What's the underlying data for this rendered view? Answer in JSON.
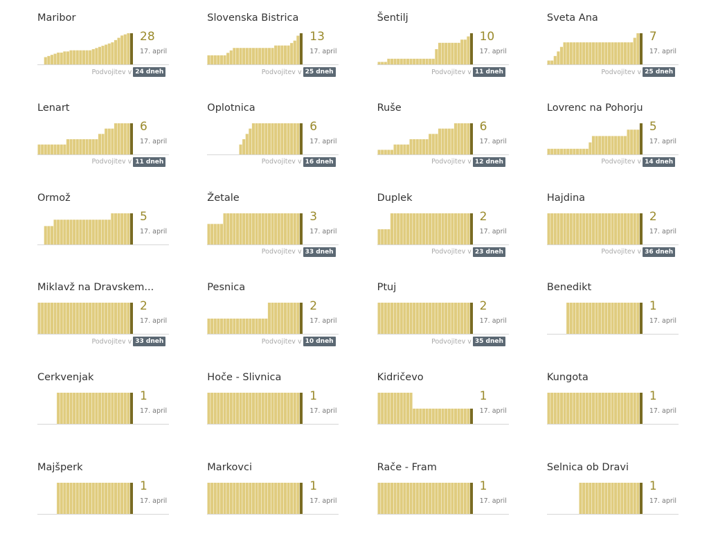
{
  "chart_data": [
    {
      "type": "bar",
      "title": "Maribor",
      "value": "28",
      "date": "17. april",
      "doubling_label": "Podvojitev v",
      "doubling": "24 dneh",
      "values": [
        7,
        8,
        9,
        10,
        11,
        11,
        12,
        12,
        13,
        13,
        13,
        13,
        13,
        13,
        13,
        14,
        15,
        16,
        17,
        18,
        19,
        20,
        22,
        24,
        26,
        27,
        28,
        28
      ]
    },
    {
      "type": "bar",
      "title": "Slovenska Bistrica",
      "value": "13",
      "date": "17. april",
      "doubling_label": "Podvojitev v",
      "doubling": "25 dneh",
      "values": [
        4,
        4,
        4,
        4,
        4,
        4,
        5,
        6,
        7,
        7,
        7,
        7,
        7,
        7,
        7,
        7,
        7,
        7,
        7,
        7,
        7,
        8,
        8,
        8,
        8,
        8,
        9,
        10,
        12,
        13
      ]
    },
    {
      "type": "bar",
      "title": "Šentilj",
      "value": "10",
      "date": "17. april",
      "doubling_label": "Podvojitev v",
      "doubling": "11 dneh",
      "values": [
        1,
        1,
        1,
        1,
        1,
        1,
        1,
        2,
        2,
        2,
        2,
        2,
        2,
        2,
        2,
        2,
        2,
        2,
        2,
        2,
        2,
        2,
        5,
        7,
        7,
        7,
        7,
        7,
        7,
        7,
        8,
        8,
        9,
        10
      ]
    },
    {
      "type": "bar",
      "title": "Sveta Ana",
      "value": "7",
      "date": "17. april",
      "doubling_label": "Podvojitev v",
      "doubling": "25 dneh",
      "values": [
        1,
        1,
        2,
        3,
        4,
        5,
        5,
        5,
        5,
        5,
        5,
        5,
        5,
        5,
        5,
        5,
        5,
        5,
        5,
        5,
        5,
        5,
        5,
        5,
        5,
        5,
        5,
        6,
        7,
        7
      ]
    },
    {
      "type": "bar",
      "title": "Lenart",
      "value": "6",
      "date": "17. april",
      "doubling_label": "Podvojitev v",
      "doubling": "11 dneh",
      "values": [
        2,
        2,
        2,
        2,
        2,
        2,
        2,
        2,
        2,
        2,
        2,
        3,
        3,
        3,
        3,
        3,
        3,
        3,
        3,
        3,
        3,
        4,
        4,
        5,
        5,
        5,
        6,
        6,
        6,
        6,
        6,
        6
      ]
    },
    {
      "type": "bar",
      "title": "Oplotnica",
      "value": "6",
      "date": "17. april",
      "doubling_label": "Podvojitev v",
      "doubling": "16 dneh",
      "values": [
        2,
        3,
        4,
        5,
        6,
        6,
        6,
        6,
        6,
        6,
        6,
        6,
        6,
        6,
        6,
        6,
        6,
        6,
        6,
        6
      ]
    },
    {
      "type": "bar",
      "title": "Ruše",
      "value": "6",
      "date": "17. april",
      "doubling_label": "Podvojitev v",
      "doubling": "12 dneh",
      "values": [
        1,
        1,
        1,
        1,
        1,
        1,
        1,
        1,
        1,
        1,
        2,
        2,
        2,
        2,
        2,
        3,
        3,
        3,
        3,
        3,
        3,
        4,
        4,
        4,
        5,
        5,
        5,
        5,
        5,
        6,
        6,
        6,
        6,
        6,
        6
      ]
    },
    {
      "type": "bar",
      "title": "Lovrenc na Pohorju",
      "value": "5",
      "date": "17. april",
      "doubling_label": "Podvojitev v",
      "doubling": "14 dneh",
      "values": [
        1,
        1,
        1,
        1,
        1,
        1,
        1,
        1,
        1,
        1,
        1,
        1,
        1,
        1,
        1,
        1,
        1,
        1,
        2,
        3,
        3,
        3,
        3,
        3,
        3,
        3,
        3,
        3,
        3,
        3,
        4,
        4,
        4,
        4,
        5
      ]
    },
    {
      "type": "bar",
      "title": "Ormož",
      "value": "5",
      "date": "17. april",
      "doubling_label": "",
      "doubling": "",
      "values": [
        3,
        3,
        3,
        4,
        4,
        4,
        4,
        4,
        4,
        4,
        4,
        4,
        4,
        4,
        4,
        4,
        4,
        4,
        4,
        4,
        4,
        5,
        5,
        5,
        5,
        5,
        5,
        5
      ]
    },
    {
      "type": "bar",
      "title": "Žetale",
      "value": "3",
      "date": "17. april",
      "doubling_label": "Podvojitev v",
      "doubling": "33 dneh",
      "values": [
        2,
        2,
        2,
        2,
        2,
        2,
        2,
        2,
        2,
        3,
        3,
        3,
        3,
        3,
        3,
        3,
        3,
        3,
        3,
        3,
        3,
        3,
        3,
        3,
        3,
        3,
        3,
        3,
        3,
        3,
        3,
        3,
        3,
        3
      ]
    },
    {
      "type": "bar",
      "title": "Duplek",
      "value": "2",
      "date": "17. april",
      "doubling_label": "Podvojitev v",
      "doubling": "23 dneh",
      "values": [
        1,
        1,
        1,
        1,
        1,
        1,
        1,
        1,
        2,
        2,
        2,
        2,
        2,
        2,
        2,
        2,
        2,
        2,
        2,
        2,
        2,
        2,
        2,
        2,
        2,
        2,
        2,
        2,
        2,
        2,
        2,
        2,
        2,
        2
      ]
    },
    {
      "type": "bar",
      "title": "Hajdina",
      "value": "2",
      "date": "17. april",
      "doubling_label": "Podvojitev v",
      "doubling": "36 dneh",
      "values": [
        2,
        2,
        2,
        2,
        2,
        2,
        2,
        2,
        2,
        2,
        2,
        2,
        2,
        2,
        2,
        2,
        2,
        2,
        2,
        2,
        2,
        2,
        2,
        2,
        2,
        2,
        2,
        2,
        2,
        2,
        2,
        2,
        2,
        2,
        2,
        2
      ]
    },
    {
      "type": "bar",
      "title": "Miklavž na Dravskem...",
      "value": "2",
      "date": "17. april",
      "doubling_label": "Podvojitev v",
      "doubling": "33 dneh",
      "values": [
        2,
        2,
        2,
        2,
        2,
        2,
        2,
        2,
        2,
        2,
        2,
        2,
        2,
        2,
        2,
        2,
        2,
        2,
        2,
        2,
        2,
        2,
        2,
        2,
        2,
        2,
        2,
        2,
        2,
        2,
        2,
        2,
        2,
        2,
        2
      ]
    },
    {
      "type": "bar",
      "title": "Pesnica",
      "value": "2",
      "date": "17. april",
      "doubling_label": "Podvojitev v",
      "doubling": "10 dneh",
      "values": [
        1,
        1,
        1,
        1,
        1,
        1,
        1,
        1,
        1,
        1,
        1,
        1,
        1,
        1,
        1,
        1,
        1,
        1,
        1,
        1,
        1,
        1,
        1,
        1,
        2,
        2,
        2,
        2,
        2,
        2,
        2,
        2,
        2,
        2,
        2
      ]
    },
    {
      "type": "bar",
      "title": "Ptuj",
      "value": "2",
      "date": "17. april",
      "doubling_label": "Podvojitev v",
      "doubling": "35 dneh",
      "values": [
        2,
        2,
        2,
        2,
        2,
        2,
        2,
        2,
        2,
        2,
        2,
        2,
        2,
        2,
        2,
        2,
        2,
        2,
        2,
        2,
        2,
        2,
        2,
        2,
        2,
        2,
        2,
        2,
        2,
        2,
        2,
        2,
        2,
        2,
        2
      ]
    },
    {
      "type": "bar",
      "title": "Benedikt",
      "value": "1",
      "date": "17. april",
      "doubling_label": "",
      "doubling": "",
      "values": [
        1,
        1,
        1,
        1,
        1,
        1,
        1,
        1,
        1,
        1,
        1,
        1,
        1,
        1,
        1,
        1,
        1,
        1,
        1,
        1,
        1,
        1,
        1,
        1
      ]
    },
    {
      "type": "bar",
      "title": "Cerkvenjak",
      "value": "1",
      "date": "17. april",
      "doubling_label": "",
      "doubling": "",
      "values": [
        1,
        1,
        1,
        1,
        1,
        1,
        1,
        1,
        1,
        1,
        1,
        1,
        1,
        1,
        1,
        1,
        1,
        1,
        1,
        1,
        1,
        1,
        1,
        1
      ]
    },
    {
      "type": "bar",
      "title": "Hoče - Slivnica",
      "value": "1",
      "date": "17. april",
      "doubling_label": "",
      "doubling": "",
      "values": [
        1,
        1,
        1,
        1,
        1,
        1,
        1,
        1,
        1,
        1,
        1,
        1,
        1,
        1,
        1,
        1,
        1,
        1,
        1,
        1,
        1,
        1,
        1,
        1,
        1,
        1,
        1,
        1,
        1,
        1,
        1,
        1,
        1,
        1,
        1
      ]
    },
    {
      "type": "bar",
      "title": "Kidričevo",
      "value": "1",
      "date": "17. april",
      "doubling_label": "",
      "doubling": "",
      "values": [
        2,
        2,
        2,
        2,
        2,
        2,
        2,
        2,
        2,
        2,
        2,
        2,
        2,
        2,
        2,
        2,
        1,
        1,
        1,
        1,
        1,
        1,
        1,
        1,
        1,
        1,
        1,
        1,
        1,
        1,
        1,
        1,
        1,
        1,
        1
      ]
    },
    {
      "type": "bar",
      "title": "Kungota",
      "value": "1",
      "date": "17. april",
      "doubling_label": "",
      "doubling": "",
      "values": [
        1,
        1,
        1,
        1,
        1,
        1,
        1,
        1,
        1,
        1,
        1,
        1,
        1,
        1,
        1,
        1,
        1,
        1,
        1,
        1,
        1,
        1,
        1,
        1,
        1,
        1,
        1,
        1,
        1,
        1,
        1,
        1,
        1,
        1,
        1
      ]
    },
    {
      "type": "bar",
      "title": "Majšperk",
      "value": "1",
      "date": "17. april",
      "doubling_label": "",
      "doubling": "",
      "values": [
        1,
        1,
        1,
        1,
        1,
        1,
        1,
        1,
        1,
        1,
        1,
        1,
        1,
        1,
        1,
        1,
        1,
        1,
        1,
        1,
        1,
        1,
        1,
        1
      ]
    },
    {
      "type": "bar",
      "title": "Markovci",
      "value": "1",
      "date": "17. april",
      "doubling_label": "",
      "doubling": "",
      "values": [
        1,
        1,
        1,
        1,
        1,
        1,
        1,
        1,
        1,
        1,
        1,
        1,
        1,
        1,
        1,
        1,
        1,
        1,
        1,
        1,
        1,
        1,
        1,
        1,
        1,
        1,
        1,
        1,
        1,
        1,
        1
      ]
    },
    {
      "type": "bar",
      "title": "Rače - Fram",
      "value": "1",
      "date": "17. april",
      "doubling_label": "",
      "doubling": "",
      "values": [
        1,
        1,
        1,
        1,
        1,
        1,
        1,
        1,
        1,
        1,
        1,
        1,
        1,
        1,
        1,
        1,
        1,
        1,
        1,
        1,
        1,
        1,
        1,
        1,
        1,
        1,
        1,
        1,
        1,
        1,
        1,
        1
      ]
    },
    {
      "type": "bar",
      "title": "Selnica ob Dravi",
      "value": "1",
      "date": "17. april",
      "doubling_label": "",
      "doubling": "",
      "values": [
        1,
        1,
        1,
        1,
        1,
        1,
        1,
        1,
        1,
        1,
        1,
        1,
        1,
        1,
        1,
        1,
        1,
        1,
        1,
        1
      ]
    }
  ],
  "colors": {
    "bar": "#e0cc7f",
    "bar_latest": "#7a6c23",
    "value": "#9a8a2c",
    "badge": "#5b6873",
    "baseline": "#d6d6d6"
  }
}
